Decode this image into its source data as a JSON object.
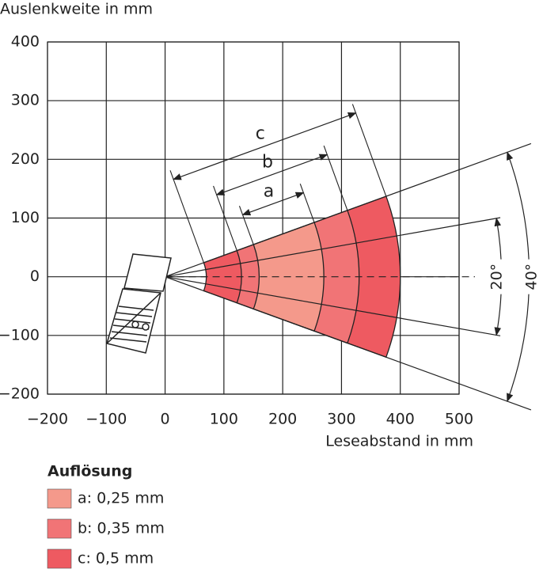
{
  "chart_data": {
    "type": "reading-field",
    "xlabel": "Leseabstand in mm",
    "ylabel": "Auslenkweite in mm",
    "xlim": [
      -200,
      500
    ],
    "ylim": [
      -200,
      400
    ],
    "xticks": [
      {
        "value": -200,
        "label": "−200"
      },
      {
        "value": -100,
        "label": "−100"
      },
      0,
      100,
      200,
      300,
      400,
      500
    ],
    "yticks": [
      {
        "value": -200,
        "label": "−200"
      },
      {
        "value": -100,
        "label": "−100"
      },
      0,
      100,
      200,
      300,
      400
    ],
    "grid": true,
    "legend_title": "Auflösung",
    "series": [
      {
        "name": "c: 0,5 mm",
        "dimension_label": "c",
        "color": "#ee5a61",
        "values": [
          70,
          400
        ]
      },
      {
        "name": "b: 0,35 mm",
        "dimension_label": "b",
        "color": "#f17476",
        "values": [
          130,
          330
        ]
      },
      {
        "name": "a: 0,25 mm",
        "dimension_label": "a",
        "color": "#f4998b",
        "values": [
          160,
          270
        ]
      }
    ],
    "angles": [
      {
        "value": 20,
        "label": "20°"
      },
      {
        "value": 40,
        "label": "40°"
      }
    ]
  }
}
